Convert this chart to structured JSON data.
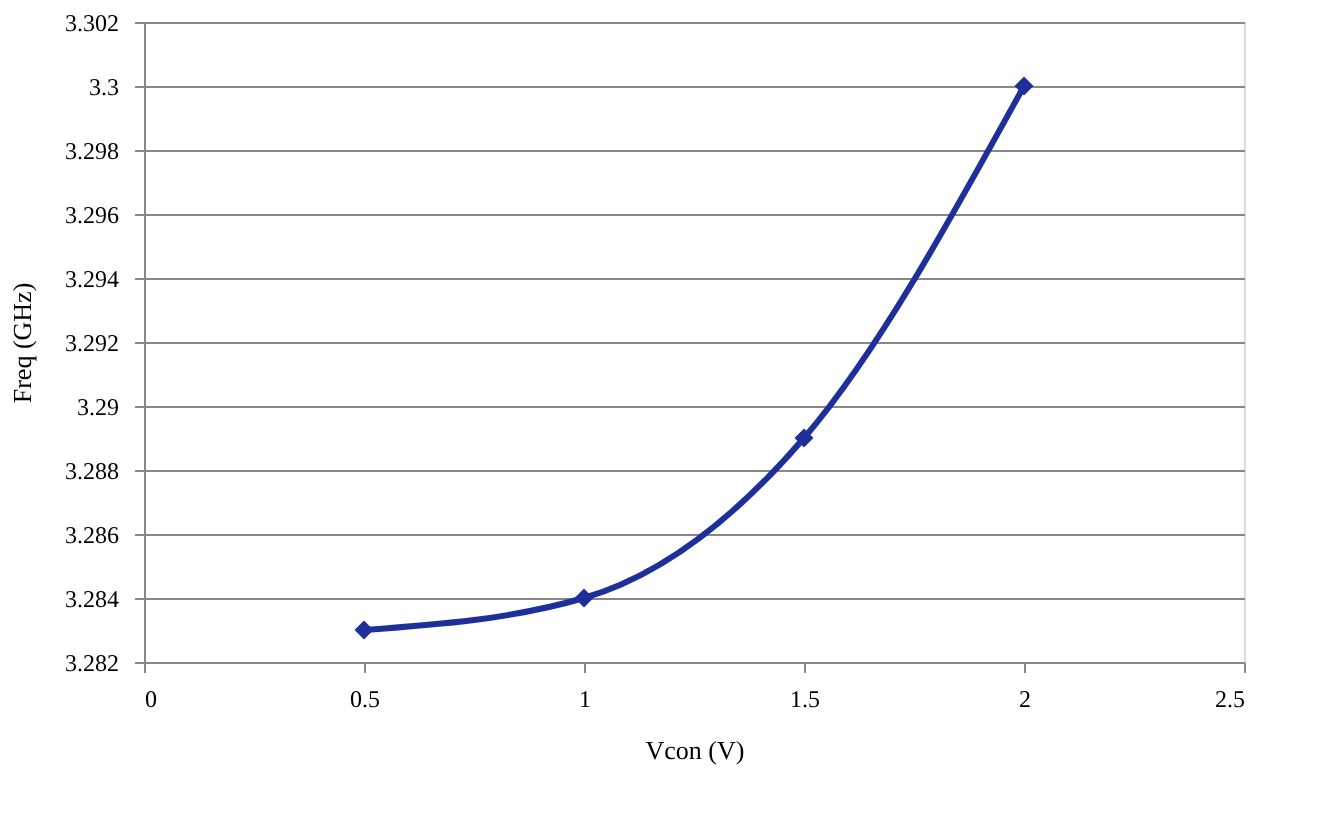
{
  "chart_data": {
    "type": "line",
    "xlabel": "Vcon (V)",
    "ylabel": "Freq (GHz)",
    "x": [
      0.5,
      1,
      1.5,
      2
    ],
    "series": [
      {
        "color": "#1f2f9a",
        "values": [
          3.283,
          3.284,
          3.289,
          3.3
        ]
      }
    ],
    "xlim": [
      0,
      2.5
    ],
    "xticks": [
      0,
      0.5,
      1,
      1.5,
      2,
      2.5
    ],
    "ylim": [
      3.282,
      3.302
    ],
    "yticks": [
      3.282,
      3.284,
      3.286,
      3.288,
      3.29,
      3.292,
      3.294,
      3.296,
      3.298,
      3.3,
      3.302
    ],
    "grid": "y",
    "marker": "diamond",
    "line_style": "solid"
  }
}
